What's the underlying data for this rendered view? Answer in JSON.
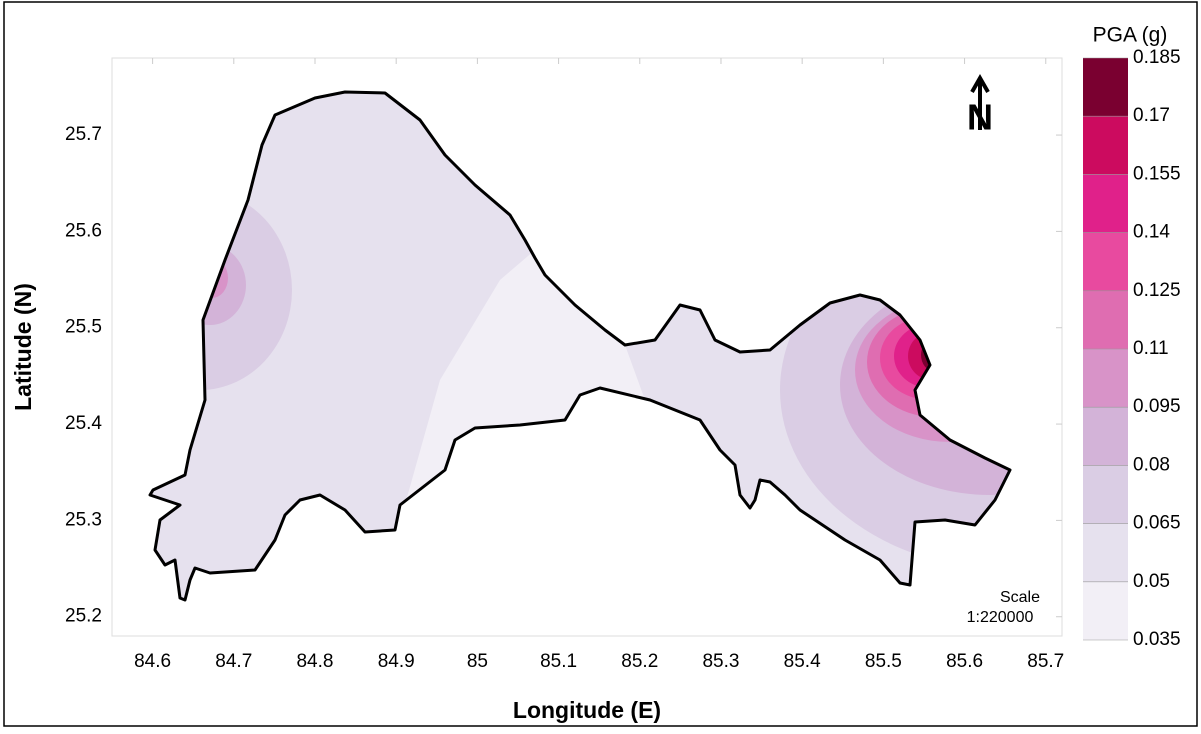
{
  "chart_data": {
    "type": "contour-map",
    "xlabel": "Longitude (E)",
    "ylabel": "Latitude (N)",
    "xlim": [
      84.55,
      85.72
    ],
    "xticks": [
      84.6,
      84.7,
      84.8,
      84.9,
      85,
      85.1,
      85.2,
      85.3,
      85.4,
      85.5,
      85.6,
      85.7
    ],
    "ylim": [
      25.18,
      25.78
    ],
    "yticks": [
      25.2,
      25.3,
      25.4,
      25.5,
      25.6,
      25.7
    ],
    "colorbar": {
      "title": "PGA (g)",
      "levels": [
        0.035,
        0.05,
        0.065,
        0.08,
        0.095,
        0.11,
        0.125,
        0.14,
        0.155,
        0.17,
        0.185
      ],
      "colors": [
        "#f2eff6",
        "#e6e1ee",
        "#dacde4",
        "#d3b3d8",
        "#d893c8",
        "#df6db1",
        "#e84a9f",
        "#e0218a",
        "#cc0b5f",
        "#7a0030"
      ]
    },
    "north": "N",
    "scale": {
      "title": "Scale",
      "ratio": "1:220000"
    }
  }
}
